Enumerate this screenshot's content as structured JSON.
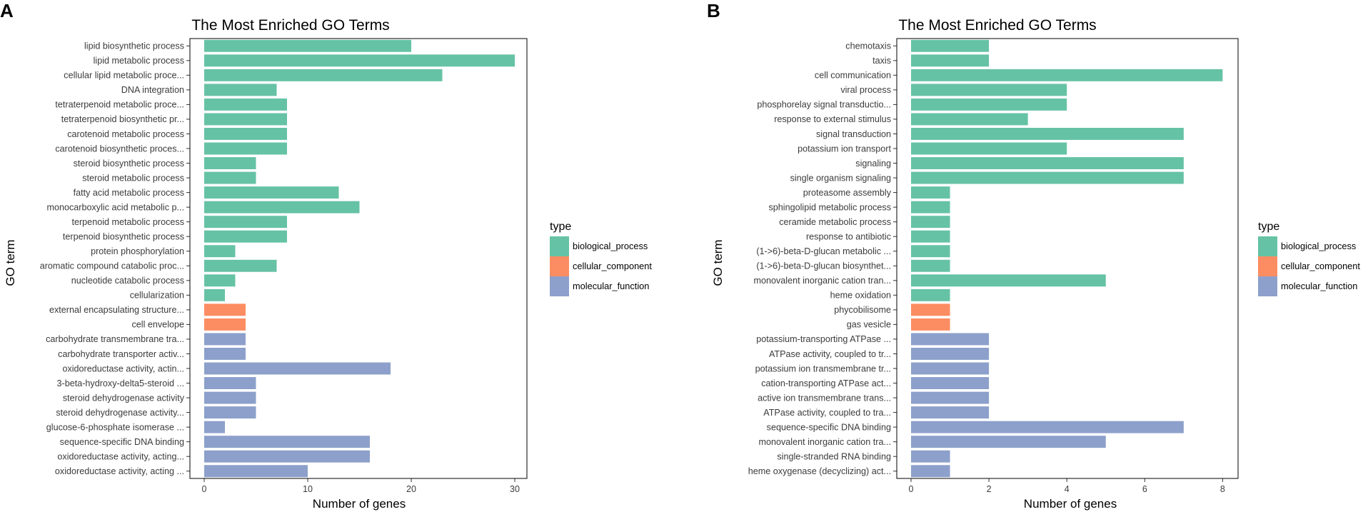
{
  "chart_data": [
    {
      "type": "bar",
      "orientation": "horizontal",
      "panel_label": "A",
      "title": "The Most Enriched GO Terms",
      "xlabel": "Number of genes",
      "ylabel": "GO term",
      "xlim": [
        0,
        31
      ],
      "xticks": [
        0,
        10,
        20,
        30
      ],
      "legend": {
        "title": "type",
        "position": "right",
        "entries": [
          {
            "label": "biological_process",
            "color": "#66c2a5"
          },
          {
            "label": "cellular_component",
            "color": "#fc8d62"
          },
          {
            "label": "molecular_function",
            "color": "#8da0cb"
          }
        ]
      },
      "bars": [
        {
          "term": "lipid biosynthetic process",
          "value": 20,
          "type": "biological_process"
        },
        {
          "term": "lipid metabolic process",
          "value": 30,
          "type": "biological_process"
        },
        {
          "term": "cellular lipid metabolic proce...",
          "value": 23,
          "type": "biological_process"
        },
        {
          "term": "DNA integration",
          "value": 7,
          "type": "biological_process"
        },
        {
          "term": "tetraterpenoid metabolic proce...",
          "value": 8,
          "type": "biological_process"
        },
        {
          "term": "tetraterpenoid biosynthetic pr...",
          "value": 8,
          "type": "biological_process"
        },
        {
          "term": "carotenoid metabolic process",
          "value": 8,
          "type": "biological_process"
        },
        {
          "term": "carotenoid biosynthetic proces...",
          "value": 8,
          "type": "biological_process"
        },
        {
          "term": "steroid biosynthetic process",
          "value": 5,
          "type": "biological_process"
        },
        {
          "term": "steroid metabolic process",
          "value": 5,
          "type": "biological_process"
        },
        {
          "term": "fatty acid metabolic process",
          "value": 13,
          "type": "biological_process"
        },
        {
          "term": "monocarboxylic acid metabolic p...",
          "value": 15,
          "type": "biological_process"
        },
        {
          "term": "terpenoid metabolic process",
          "value": 8,
          "type": "biological_process"
        },
        {
          "term": "terpenoid biosynthetic process",
          "value": 8,
          "type": "biological_process"
        },
        {
          "term": "protein phosphorylation",
          "value": 3,
          "type": "biological_process"
        },
        {
          "term": "aromatic compound catabolic proc...",
          "value": 7,
          "type": "biological_process"
        },
        {
          "term": "nucleotide catabolic process",
          "value": 3,
          "type": "biological_process"
        },
        {
          "term": "cellularization",
          "value": 2,
          "type": "biological_process"
        },
        {
          "term": "external encapsulating structure...",
          "value": 4,
          "type": "cellular_component"
        },
        {
          "term": "cell envelope",
          "value": 4,
          "type": "cellular_component"
        },
        {
          "term": "carbohydrate transmembrane tra...",
          "value": 4,
          "type": "molecular_function"
        },
        {
          "term": "carbohydrate transporter activ...",
          "value": 4,
          "type": "molecular_function"
        },
        {
          "term": "oxidoreductase activity, actin...",
          "value": 18,
          "type": "molecular_function"
        },
        {
          "term": "3-beta-hydroxy-delta5-steroid ...",
          "value": 5,
          "type": "molecular_function"
        },
        {
          "term": "steroid dehydrogenase activity",
          "value": 5,
          "type": "molecular_function"
        },
        {
          "term": "steroid dehydrogenase activity...",
          "value": 5,
          "type": "molecular_function"
        },
        {
          "term": "glucose-6-phosphate isomerase ...",
          "value": 2,
          "type": "molecular_function"
        },
        {
          "term": "sequence-specific DNA binding",
          "value": 16,
          "type": "molecular_function"
        },
        {
          "term": "oxidoreductase activity, acting...",
          "value": 16,
          "type": "molecular_function"
        },
        {
          "term": "oxidoreductase activity, acting ...",
          "value": 10,
          "type": "molecular_function"
        }
      ]
    },
    {
      "type": "bar",
      "orientation": "horizontal",
      "panel_label": "B",
      "title": "The Most Enriched GO Terms",
      "xlabel": "Number of genes",
      "ylabel": "GO term",
      "xlim": [
        0,
        8.4
      ],
      "xticks": [
        0,
        2,
        4,
        6,
        8
      ],
      "legend": {
        "title": "type",
        "position": "right",
        "entries": [
          {
            "label": "biological_process",
            "color": "#66c2a5"
          },
          {
            "label": "cellular_component",
            "color": "#fc8d62"
          },
          {
            "label": "molecular_function",
            "color": "#8da0cb"
          }
        ]
      },
      "bars": [
        {
          "term": "chemotaxis",
          "value": 2,
          "type": "biological_process"
        },
        {
          "term": "taxis",
          "value": 2,
          "type": "biological_process"
        },
        {
          "term": "cell communication",
          "value": 8,
          "type": "biological_process"
        },
        {
          "term": "viral process",
          "value": 4,
          "type": "biological_process"
        },
        {
          "term": "phosphorelay signal transductio...",
          "value": 4,
          "type": "biological_process"
        },
        {
          "term": "response to external stimulus",
          "value": 3,
          "type": "biological_process"
        },
        {
          "term": "signal transduction",
          "value": 7,
          "type": "biological_process"
        },
        {
          "term": "potassium ion transport",
          "value": 4,
          "type": "biological_process"
        },
        {
          "term": "signaling",
          "value": 7,
          "type": "biological_process"
        },
        {
          "term": "single organism signaling",
          "value": 7,
          "type": "biological_process"
        },
        {
          "term": "proteasome assembly",
          "value": 1,
          "type": "biological_process"
        },
        {
          "term": "sphingolipid metabolic process",
          "value": 1,
          "type": "biological_process"
        },
        {
          "term": "ceramide metabolic process",
          "value": 1,
          "type": "biological_process"
        },
        {
          "term": "response to antibiotic",
          "value": 1,
          "type": "biological_process"
        },
        {
          "term": "(1->6)-beta-D-glucan metabolic ...",
          "value": 1,
          "type": "biological_process"
        },
        {
          "term": "(1->6)-beta-D-glucan biosynthet...",
          "value": 1,
          "type": "biological_process"
        },
        {
          "term": "monovalent inorganic cation tran...",
          "value": 5,
          "type": "biological_process"
        },
        {
          "term": "heme oxidation",
          "value": 1,
          "type": "biological_process"
        },
        {
          "term": "phycobilisome",
          "value": 1,
          "type": "cellular_component"
        },
        {
          "term": "gas vesicle",
          "value": 1,
          "type": "cellular_component"
        },
        {
          "term": "potassium-transporting ATPase ...",
          "value": 2,
          "type": "molecular_function"
        },
        {
          "term": "ATPase activity, coupled to tr...",
          "value": 2,
          "type": "molecular_function"
        },
        {
          "term": "potassium ion transmembrane tr...",
          "value": 2,
          "type": "molecular_function"
        },
        {
          "term": "cation-transporting ATPase act...",
          "value": 2,
          "type": "molecular_function"
        },
        {
          "term": "active ion transmembrane trans...",
          "value": 2,
          "type": "molecular_function"
        },
        {
          "term": "ATPase activity, coupled to tra...",
          "value": 2,
          "type": "molecular_function"
        },
        {
          "term": "sequence-specific DNA binding",
          "value": 7,
          "type": "molecular_function"
        },
        {
          "term": "monovalent inorganic cation tra...",
          "value": 5,
          "type": "molecular_function"
        },
        {
          "term": "single-stranded RNA binding",
          "value": 1,
          "type": "molecular_function"
        },
        {
          "term": "heme oxygenase (decyclizing) act...",
          "value": 1,
          "type": "molecular_function"
        }
      ]
    }
  ]
}
